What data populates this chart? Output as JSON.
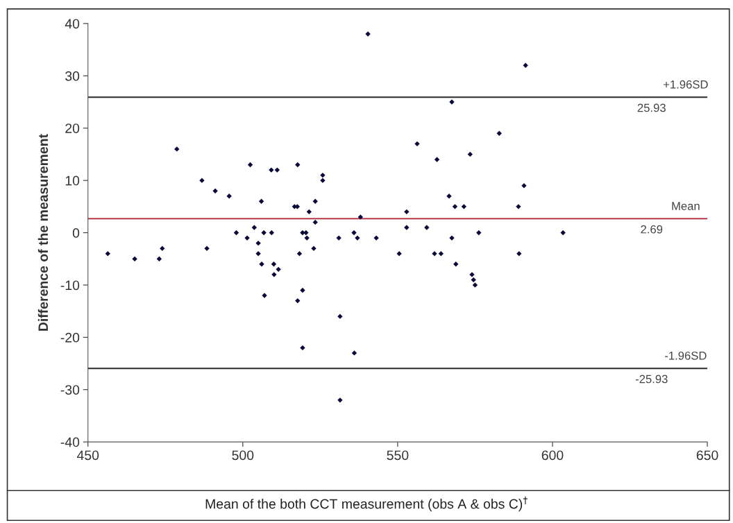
{
  "chart_data": {
    "type": "scatter",
    "xlabel": "Mean of the both CCT measurement (obs A & obs C)$^{†}$",
    "ylabel": "Difference of the measurement",
    "x": [
      478.7,
      502.4,
      509.2,
      511.1,
      517.7,
      486.8,
      491.1,
      495.6,
      506,
      516.7,
      517.6,
      503.7,
      497.9,
      506.8,
      509.3,
      519.3,
      520.4,
      520.7,
      501.4,
      505,
      456.4,
      465.1,
      473,
      474,
      488.4,
      505,
      518.3,
      506.1,
      510,
      511.5,
      510.1,
      507,
      517.7,
      519.3,
      540.4,
      567.5,
      556.3,
      562.7,
      573.4,
      525.8,
      525.8,
      523.4,
      521.4,
      523.4,
      538,
      552.9,
      566.6,
      568.5,
      571.4,
      552.9,
      559.4,
      531,
      535.9,
      537,
      543.1,
      567.5,
      576.2,
      522.9,
      550.5,
      561.9,
      564,
      568.8,
      574,
      574.5,
      575,
      531.4,
      519.3,
      536,
      531.4,
      591.3,
      582.8,
      590.8,
      589,
      603.4,
      589.2
    ],
    "series": [
      {
        "color": "#0a0a3a",
        "values": [
          16,
          13,
          12,
          12,
          13,
          10,
          8,
          7,
          6,
          5,
          5,
          1,
          0,
          0,
          0,
          0,
          0,
          -1,
          -1,
          -2,
          -4,
          -5,
          -5,
          -3,
          -3,
          -4,
          -4,
          -6,
          -6,
          -7,
          -8,
          -12,
          -13,
          -11,
          38,
          25,
          17,
          14,
          15,
          11,
          10,
          6,
          4,
          2,
          3,
          4,
          7,
          5,
          5,
          1,
          1,
          -1,
          0,
          -1,
          -1,
          -1,
          0,
          -3,
          -4,
          -4,
          -4,
          -6,
          -8,
          -9,
          -10,
          -16,
          -22,
          -23,
          -32,
          32,
          19,
          9,
          5,
          0,
          -4
        ]
      }
    ],
    "marker": "diamond",
    "xlim": [
      450,
      650
    ],
    "xticks": [
      450,
      500,
      550,
      600,
      650
    ],
    "ylim": [
      -40,
      40
    ],
    "yticks": [
      -40,
      -30,
      -20,
      -10,
      0,
      10,
      20,
      30,
      40
    ],
    "ref_lines": [
      {
        "axis": "y",
        "value": 25.93,
        "label": "+1.96SD",
        "color": "#404040"
      },
      {
        "axis": "y",
        "value": 2.69,
        "label": "Mean",
        "color": "#b5394a"
      },
      {
        "axis": "y",
        "value": -25.93,
        "label": "-1.96SD",
        "color": "#404040"
      }
    ],
    "annotations": [
      {
        "text": "25.93",
        "y": 25.93
      },
      {
        "text": "2.69",
        "y": 2.69
      },
      {
        "text": "-25.93",
        "y": -25.93
      }
    ],
    "grid": false
  }
}
